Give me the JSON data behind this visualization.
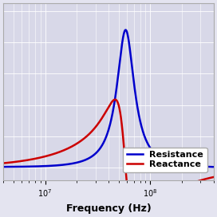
{
  "xlabel": "Frequency (Hz)",
  "resistance_color": "#0000cc",
  "reactance_color": "#cc0000",
  "legend_labels": [
    "Resistance",
    "Reactance"
  ],
  "line_width": 1.8,
  "plot_bg_color": "#d8d8e8",
  "fig_bg_color": "#e4e4f0",
  "grid_color": "#ffffff",
  "xmin": 4000000.0,
  "xmax": 400000000.0,
  "legend_fontsize": 8,
  "xlabel_fontsize": 9
}
